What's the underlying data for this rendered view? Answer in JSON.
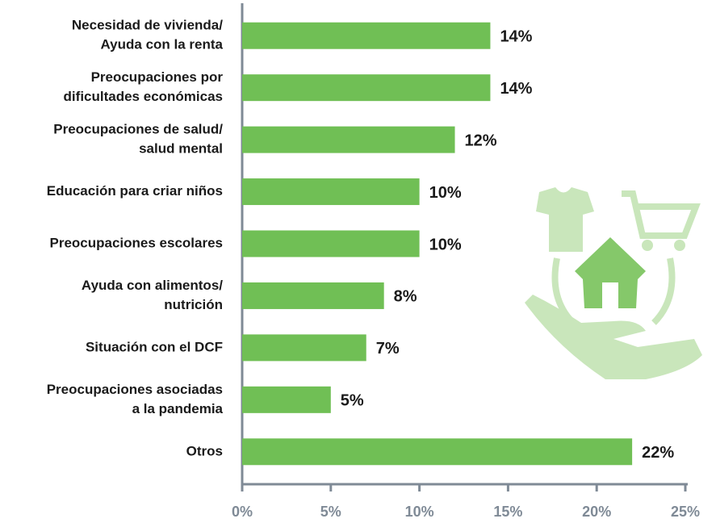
{
  "chart_data": {
    "type": "bar",
    "orientation": "horizontal",
    "categories": [
      [
        "Necesidad de vivienda/",
        "Ayuda con la renta"
      ],
      [
        "Preocupaciones por",
        "dificultades económicas"
      ],
      [
        "Preocupaciones de salud/",
        "salud mental"
      ],
      [
        "Educación para criar niños"
      ],
      [
        "Preocupaciones escolares"
      ],
      [
        "Ayuda con alimentos/",
        "nutrición"
      ],
      [
        "Situación con el DCF"
      ],
      [
        "Preocupaciones asociadas",
        "a la pandemia"
      ],
      [
        "Otros"
      ]
    ],
    "values": [
      14,
      14,
      12,
      10,
      10,
      8,
      7,
      5,
      22
    ],
    "value_labels": [
      "14%",
      "14%",
      "12%",
      "10%",
      "10%",
      "8%",
      "7%",
      "5%",
      "22%"
    ],
    "color": "#70bf55",
    "xlim": [
      0,
      25
    ],
    "xticks": [
      {
        "value": 0,
        "label": "0%"
      },
      {
        "value": 5,
        "label": "5%"
      },
      {
        "value": 10,
        "label": "10%"
      },
      {
        "value": 15,
        "label": "15%"
      },
      {
        "value": 20,
        "label": "20%"
      },
      {
        "value": 25,
        "label": "25%"
      }
    ]
  }
}
